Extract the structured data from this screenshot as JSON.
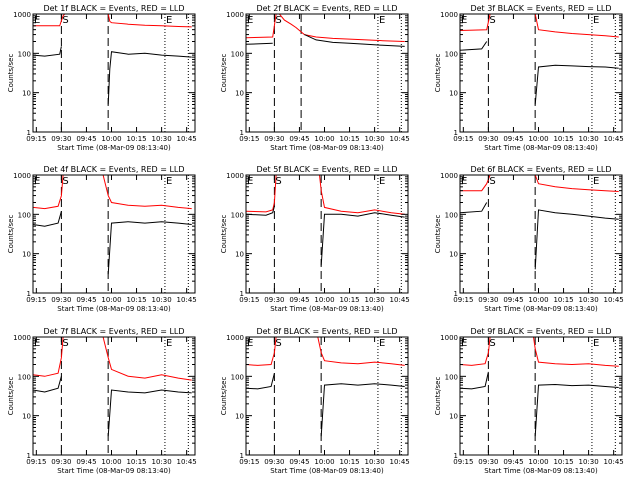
{
  "colors": {
    "background": "#ffffff",
    "axis": "#000000",
    "black_series": "#000000",
    "red_series": "#ff0000"
  },
  "chart_data": [
    {
      "type": "line",
      "title": "Det 1f BLACK = Events, RED = LLD",
      "xlabel": "Start Time (08-Mar-09 08:13:40)",
      "ylabel": "Counts/sec",
      "yscale": "log",
      "ylim": [
        1,
        1000
      ],
      "x_ticks": [
        "09:15",
        "09:30",
        "09:45",
        "10:00",
        "10:15",
        "10:30",
        "10:45"
      ],
      "y_ticks": [
        "1",
        "10",
        "100",
        "1000"
      ],
      "markers": [
        {
          "label": "E",
          "x": "09:13"
        },
        {
          "label": "S",
          "x": "09:30"
        },
        {
          "label": "E",
          "x": "10:32"
        }
      ],
      "dashed_lines": [
        "09:30",
        "09:58"
      ],
      "dotted_lines": [
        "10:32",
        "10:46"
      ],
      "series": [
        {
          "name": "LLD",
          "color": "red",
          "x": [
            "09:13",
            "09:29",
            "09:31",
            "09:32",
            "09:58",
            "09:59",
            "10:00",
            "10:10",
            "10:20",
            "10:30",
            "10:40",
            "10:48"
          ],
          "y": [
            500,
            500,
            900,
            1000,
            1000,
            650,
            600,
            550,
            520,
            500,
            480,
            470
          ]
        },
        {
          "name": "Events",
          "color": "black",
          "x": [
            "09:13",
            "09:20",
            "09:29",
            "09:30",
            "09:58",
            "09:58",
            "09:59",
            "10:00",
            "10:10",
            "10:20",
            "10:30",
            "10:40",
            "10:48"
          ],
          "y": [
            90,
            85,
            95,
            150,
            null,
            5,
            40,
            110,
            95,
            100,
            90,
            85,
            80
          ]
        }
      ]
    },
    {
      "type": "line",
      "title": "Det 2f BLACK = Events, RED = LLD",
      "xlabel": "Start Time (08-Mar-09 08:13:40)",
      "ylabel": "Counts/sec",
      "yscale": "log",
      "ylim": [
        1,
        1000
      ],
      "x_ticks": [
        "09:15",
        "09:30",
        "09:45",
        "10:00",
        "10:15",
        "10:30",
        "10:45"
      ],
      "y_ticks": [
        "1",
        "10",
        "100",
        "1000"
      ],
      "markers": [
        {
          "label": "E",
          "x": "09:13"
        },
        {
          "label": "S",
          "x": "09:30"
        },
        {
          "label": "E",
          "x": "10:32"
        }
      ],
      "dashed_lines": [
        "09:30",
        "09:46"
      ],
      "dotted_lines": [
        "10:32",
        "10:46"
      ],
      "series": [
        {
          "name": "LLD",
          "color": "red",
          "x": [
            "09:13",
            "09:29",
            "09:31",
            "09:33",
            "09:36",
            "09:40",
            "09:43",
            "09:46",
            "09:48",
            "09:55",
            "10:05",
            "10:15",
            "10:25",
            "10:35",
            "10:48"
          ],
          "y": [
            250,
            260,
            1000,
            1000,
            700,
            550,
            450,
            350,
            300,
            260,
            240,
            230,
            220,
            210,
            200
          ]
        },
        {
          "name": "Events",
          "color": "black",
          "x": [
            "09:13",
            "09:29",
            "09:30",
            "09:46",
            "09:48",
            "09:55",
            "10:05",
            "10:15",
            "10:25",
            "10:35",
            "10:48"
          ],
          "y": [
            170,
            180,
            null,
            null,
            300,
            220,
            190,
            180,
            170,
            160,
            150
          ]
        }
      ]
    },
    {
      "type": "line",
      "title": "Det 3f BLACK = Events, RED = LLD",
      "xlabel": "Start Time (08-Mar-09 08:13:40)",
      "ylabel": "Counts/sec",
      "yscale": "log",
      "ylim": [
        1,
        1000
      ],
      "x_ticks": [
        "09:15",
        "09:30",
        "09:45",
        "10:00",
        "10:15",
        "10:30",
        "10:45"
      ],
      "y_ticks": [
        "1",
        "10",
        "100",
        "1000"
      ],
      "markers": [
        {
          "label": "E",
          "x": "09:13"
        },
        {
          "label": "S",
          "x": "09:30"
        },
        {
          "label": "E",
          "x": "10:32"
        }
      ],
      "dashed_lines": [
        "09:30",
        "09:58"
      ],
      "dotted_lines": [
        "10:32",
        "10:46"
      ],
      "series": [
        {
          "name": "LLD",
          "color": "red",
          "x": [
            "09:13",
            "09:29",
            "09:31",
            "09:33",
            "09:58",
            "10:00",
            "10:10",
            "10:20",
            "10:30",
            "10:40",
            "10:48"
          ],
          "y": [
            380,
            400,
            1000,
            1000,
            1000,
            400,
            350,
            320,
            300,
            280,
            260
          ]
        },
        {
          "name": "Events",
          "color": "black",
          "x": [
            "09:13",
            "09:26",
            "09:29",
            "09:30",
            "09:58",
            "09:58",
            "10:00",
            "10:10",
            "10:20",
            "10:30",
            "10:40",
            "10:48"
          ],
          "y": [
            120,
            130,
            200,
            null,
            null,
            5,
            45,
            50,
            48,
            46,
            45,
            42
          ]
        }
      ]
    },
    {
      "type": "line",
      "title": "Det 4f BLACK = Events, RED = LLD",
      "xlabel": "Start Time (08-Mar-09 08:13:40)",
      "ylabel": "Counts/sec",
      "yscale": "log",
      "ylim": [
        1,
        1000
      ],
      "x_ticks": [
        "09:15",
        "09:30",
        "09:45",
        "10:00",
        "10:15",
        "10:30",
        "10:45"
      ],
      "y_ticks": [
        "1",
        "10",
        "100",
        "1000"
      ],
      "markers": [
        {
          "label": "E",
          "x": "09:13"
        },
        {
          "label": "S",
          "x": "09:30"
        },
        {
          "label": "E",
          "x": "10:32"
        }
      ],
      "dashed_lines": [
        "09:30",
        "09:58"
      ],
      "dotted_lines": [
        "10:32",
        "10:46"
      ],
      "series": [
        {
          "name": "LLD",
          "color": "red",
          "x": [
            "09:13",
            "09:20",
            "09:28",
            "09:30",
            "09:31",
            "09:55",
            "09:58",
            "10:00",
            "10:10",
            "10:20",
            "10:30",
            "10:40",
            "10:48"
          ],
          "y": [
            150,
            140,
            160,
            300,
            1000,
            1000,
            300,
            200,
            170,
            160,
            170,
            150,
            140
          ]
        },
        {
          "name": "Events",
          "color": "black",
          "x": [
            "09:13",
            "09:20",
            "09:28",
            "09:30",
            "09:58",
            "09:58",
            "10:00",
            "10:10",
            "10:20",
            "10:30",
            "10:40",
            "10:48"
          ],
          "y": [
            55,
            50,
            60,
            120,
            null,
            3,
            60,
            65,
            60,
            65,
            60,
            55
          ]
        }
      ]
    },
    {
      "type": "line",
      "title": "Det 5f BLACK = Events, RED = LLD",
      "xlabel": "Start Time (08-Mar-09 08:13:40)",
      "ylabel": "Counts/sec",
      "yscale": "log",
      "ylim": [
        1,
        1000
      ],
      "x_ticks": [
        "09:15",
        "09:30",
        "09:45",
        "10:00",
        "10:15",
        "10:30",
        "10:45"
      ],
      "y_ticks": [
        "1",
        "10",
        "100",
        "1000"
      ],
      "markers": [
        {
          "label": "E",
          "x": "09:13"
        },
        {
          "label": "S",
          "x": "09:30"
        },
        {
          "label": "E",
          "x": "10:32"
        }
      ],
      "dashed_lines": [
        "09:30",
        "09:58"
      ],
      "dotted_lines": [
        "10:32",
        "10:46"
      ],
      "series": [
        {
          "name": "LLD",
          "color": "red",
          "x": [
            "09:13",
            "09:25",
            "09:29",
            "09:30",
            "09:31",
            "09:57",
            "09:58",
            "10:00",
            "10:10",
            "10:20",
            "10:30",
            "10:40",
            "10:48"
          ],
          "y": [
            120,
            115,
            130,
            200,
            1000,
            1000,
            400,
            150,
            120,
            110,
            130,
            110,
            100
          ]
        },
        {
          "name": "Events",
          "color": "black",
          "x": [
            "09:13",
            "09:25",
            "09:29",
            "09:30",
            "09:58",
            "09:58",
            "10:00",
            "10:10",
            "10:20",
            "10:30",
            "10:40",
            "10:48"
          ],
          "y": [
            100,
            95,
            110,
            160,
            null,
            5,
            100,
            100,
            90,
            110,
            95,
            85
          ]
        }
      ]
    },
    {
      "type": "line",
      "title": "Det 6f BLACK = Events, RED = LLD",
      "xlabel": "Start Time (08-Mar-09 08:13:40)",
      "ylabel": "Counts/sec",
      "yscale": "log",
      "ylim": [
        1,
        1000
      ],
      "x_ticks": [
        "09:15",
        "09:30",
        "09:45",
        "10:00",
        "10:15",
        "10:30",
        "10:45"
      ],
      "y_ticks": [
        "1",
        "10",
        "100",
        "1000"
      ],
      "markers": [
        {
          "label": "E",
          "x": "09:13"
        },
        {
          "label": "S",
          "x": "09:30"
        },
        {
          "label": "E",
          "x": "10:32"
        }
      ],
      "dashed_lines": [
        "09:30",
        "09:58"
      ],
      "dotted_lines": [
        "10:32",
        "10:46"
      ],
      "series": [
        {
          "name": "LLD",
          "color": "red",
          "x": [
            "09:13",
            "09:26",
            "09:29",
            "09:31",
            "09:33",
            "09:58",
            "10:00",
            "10:10",
            "10:20",
            "10:30",
            "10:40",
            "10:48"
          ],
          "y": [
            400,
            400,
            600,
            1000,
            1000,
            1000,
            600,
            500,
            450,
            420,
            400,
            380
          ]
        },
        {
          "name": "Events",
          "color": "black",
          "x": [
            "09:13",
            "09:26",
            "09:29",
            "09:30",
            "09:58",
            "09:58",
            "10:00",
            "10:10",
            "10:20",
            "10:30",
            "10:40",
            "10:48"
          ],
          "y": [
            110,
            120,
            200,
            null,
            null,
            4,
            130,
            110,
            100,
            90,
            80,
            75
          ]
        }
      ]
    },
    {
      "type": "line",
      "title": "Det 7f BLACK = Events, RED = LLD",
      "xlabel": "Start Time (08-Mar-09 08:13:40)",
      "ylabel": "Counts/sec",
      "yscale": "log",
      "ylim": [
        1,
        1000
      ],
      "x_ticks": [
        "09:15",
        "09:30",
        "09:45",
        "10:00",
        "10:15",
        "10:30",
        "10:45"
      ],
      "y_ticks": [
        "1",
        "10",
        "100",
        "1000"
      ],
      "markers": [
        {
          "label": "E",
          "x": "09:13"
        },
        {
          "label": "S",
          "x": "09:30"
        },
        {
          "label": "E",
          "x": "10:32"
        }
      ],
      "dashed_lines": [
        "09:30",
        "09:58"
      ],
      "dotted_lines": [
        "10:32",
        "10:46"
      ],
      "series": [
        {
          "name": "LLD",
          "color": "red",
          "x": [
            "09:13",
            "09:20",
            "09:28",
            "09:30",
            "09:31",
            "09:55",
            "09:58",
            "10:00",
            "10:10",
            "10:20",
            "10:30",
            "10:40",
            "10:48"
          ],
          "y": [
            110,
            100,
            120,
            300,
            1000,
            1000,
            300,
            150,
            100,
            90,
            110,
            90,
            80
          ]
        },
        {
          "name": "Events",
          "color": "black",
          "x": [
            "09:13",
            "09:20",
            "09:28",
            "09:30",
            "09:58",
            "09:58",
            "10:00",
            "10:10",
            "10:20",
            "10:30",
            "10:40",
            "10:48"
          ],
          "y": [
            45,
            40,
            50,
            100,
            null,
            3,
            45,
            40,
            38,
            45,
            40,
            38
          ]
        }
      ]
    },
    {
      "type": "line",
      "title": "Det 8f BLACK = Events, RED = LLD",
      "xlabel": "Start Time (08-Mar-09 08:13:40)",
      "ylabel": "Counts/sec",
      "yscale": "log",
      "ylim": [
        1,
        1000
      ],
      "x_ticks": [
        "09:15",
        "09:30",
        "09:45",
        "10:00",
        "10:15",
        "10:30",
        "10:45"
      ],
      "y_ticks": [
        "1",
        "10",
        "100",
        "1000"
      ],
      "markers": [
        {
          "label": "E",
          "x": "09:13"
        },
        {
          "label": "S",
          "x": "09:30"
        },
        {
          "label": "E",
          "x": "10:32"
        }
      ],
      "dashed_lines": [
        "09:30",
        "09:58"
      ],
      "dotted_lines": [
        "10:32",
        "10:46"
      ],
      "series": [
        {
          "name": "LLD",
          "color": "red",
          "x": [
            "09:13",
            "09:20",
            "09:28",
            "09:30",
            "09:31",
            "09:56",
            "09:58",
            "10:00",
            "10:10",
            "10:20",
            "10:30",
            "10:40",
            "10:48"
          ],
          "y": [
            200,
            190,
            200,
            400,
            1000,
            1000,
            400,
            250,
            220,
            210,
            230,
            210,
            190
          ]
        },
        {
          "name": "Events",
          "color": "black",
          "x": [
            "09:13",
            "09:20",
            "09:28",
            "09:30",
            "09:58",
            "09:58",
            "10:00",
            "10:10",
            "10:20",
            "10:30",
            "10:40",
            "10:48"
          ],
          "y": [
            50,
            48,
            55,
            120,
            null,
            3,
            60,
            65,
            60,
            65,
            60,
            55
          ]
        }
      ]
    },
    {
      "type": "line",
      "title": "Det 9f BLACK = Events, RED = LLD",
      "xlabel": "Start Time (08-Mar-09 08:13:40)",
      "ylabel": "Counts/sec",
      "yscale": "log",
      "ylim": [
        1,
        1000
      ],
      "x_ticks": [
        "09:15",
        "09:30",
        "09:45",
        "10:00",
        "10:15",
        "10:30",
        "10:45"
      ],
      "y_ticks": [
        "1",
        "10",
        "100",
        "1000"
      ],
      "markers": [
        {
          "label": "E",
          "x": "09:13"
        },
        {
          "label": "S",
          "x": "09:30"
        },
        {
          "label": "E",
          "x": "10:32"
        }
      ],
      "dashed_lines": [
        "09:30",
        "09:58"
      ],
      "dotted_lines": [
        "10:32",
        "10:46"
      ],
      "series": [
        {
          "name": "LLD",
          "color": "red",
          "x": [
            "09:13",
            "09:20",
            "09:28",
            "09:30",
            "09:31",
            "09:57",
            "09:58",
            "10:00",
            "10:10",
            "10:20",
            "10:30",
            "10:40",
            "10:48"
          ],
          "y": [
            200,
            190,
            210,
            400,
            1000,
            1000,
            500,
            230,
            210,
            200,
            210,
            190,
            180
          ]
        },
        {
          "name": "Events",
          "color": "black",
          "x": [
            "09:13",
            "09:20",
            "09:28",
            "09:30",
            "09:58",
            "09:58",
            "10:00",
            "10:10",
            "10:20",
            "10:30",
            "10:40",
            "10:48"
          ],
          "y": [
            50,
            48,
            55,
            130,
            null,
            3,
            60,
            62,
            58,
            60,
            55,
            52
          ]
        }
      ]
    }
  ]
}
